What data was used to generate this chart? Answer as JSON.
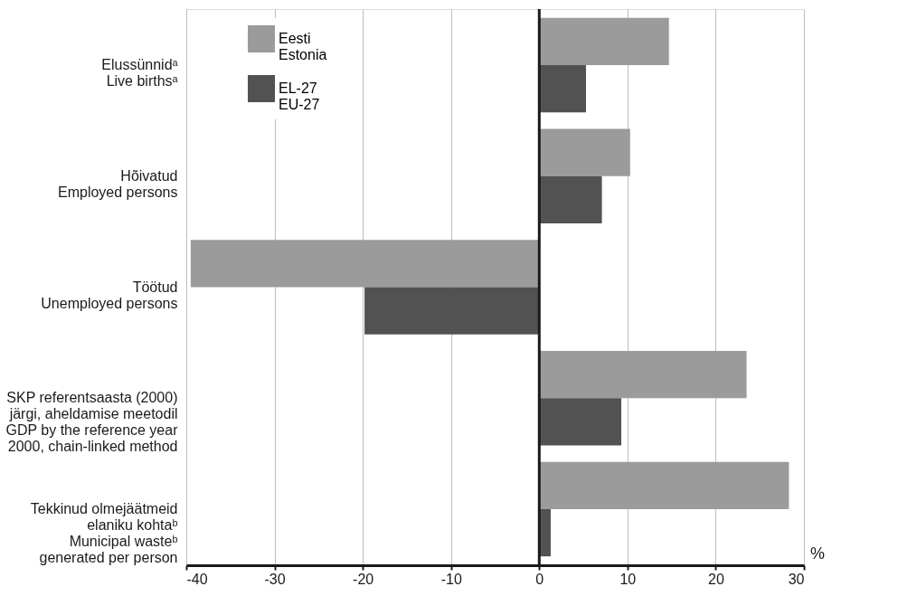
{
  "chart_data": {
    "type": "bar",
    "orientation": "horizontal",
    "categories": [
      "Elussünnidᵃ\nLive birthsᵃ",
      "Hõivatud\nEmployed persons",
      "Töötud\nUnemployed persons",
      "SKP referentsaasta (2000)\njärgi, aheldamise meetodil\nGDP by the reference year\n2000, chain-linked method",
      "Tekkinud olmejäätmeid\nelaniku kohtaᵇ\nMunicipal wasteᵇ\ngenerated per person"
    ],
    "series": [
      {
        "name": "Eesti\nEstonia",
        "color": "#9b9b9b",
        "values": [
          14.7,
          10.3,
          -39.5,
          23.5,
          28.3
        ]
      },
      {
        "name": "EL-27\nEU-27",
        "color": "#525252",
        "values": [
          5.3,
          7.1,
          -19.8,
          9.3,
          1.3
        ]
      }
    ],
    "xlim": [
      -40,
      30
    ],
    "xticks": [
      -40,
      -30,
      -20,
      -10,
      0,
      10,
      20,
      30
    ],
    "grid": "x",
    "legend": "top left",
    "annotations": [
      "%"
    ]
  }
}
